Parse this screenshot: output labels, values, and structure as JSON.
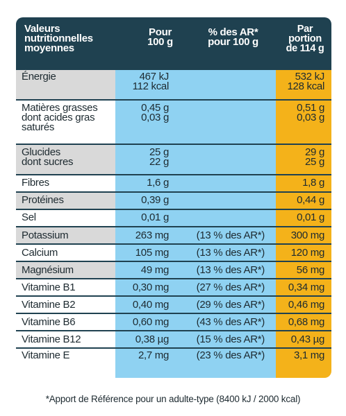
{
  "header": {
    "nutrient": [
      "Valeurs",
      "nutritionnelles",
      "moyennes"
    ],
    "per100": [
      "Pour",
      "100 g"
    ],
    "ar": [
      "% des AR*",
      "pour 100 g"
    ],
    "portion": [
      "Par",
      "portion",
      "de 114 g"
    ]
  },
  "rows": [
    {
      "name": [
        "Énergie"
      ],
      "per100": [
        "467 kJ",
        "112 kcal"
      ],
      "ar": [],
      "portion": [
        "532 kJ",
        "128 kcal"
      ],
      "shaded": true
    },
    {
      "name": [
        "Matières grasses",
        "dont acides gras",
        "saturés"
      ],
      "per100": [
        "0,45 g",
        "0,03 g"
      ],
      "ar": [],
      "portion": [
        "0,51 g",
        "0,03 g"
      ],
      "shaded": false
    },
    {
      "name": [
        "Glucides",
        "dont sucres"
      ],
      "per100": [
        "25 g",
        "22 g"
      ],
      "ar": [],
      "portion": [
        "29 g",
        "25 g"
      ],
      "shaded": true
    },
    {
      "name": [
        "Fibres"
      ],
      "per100": [
        "1,6 g"
      ],
      "ar": [],
      "portion": [
        "1,8 g"
      ],
      "shaded": false
    },
    {
      "name": [
        "Protéines"
      ],
      "per100": [
        "0,39 g"
      ],
      "ar": [],
      "portion": [
        "0,44 g"
      ],
      "shaded": true
    },
    {
      "name": [
        "Sel"
      ],
      "per100": [
        "0,01 g"
      ],
      "ar": [],
      "portion": [
        "0,01 g"
      ],
      "shaded": false
    },
    {
      "name": [
        "Potassium"
      ],
      "per100": [
        "263 mg"
      ],
      "ar": [
        "(13 % des AR*)"
      ],
      "portion": [
        "300 mg"
      ],
      "shaded": true
    },
    {
      "name": [
        "Calcium"
      ],
      "per100": [
        "105 mg"
      ],
      "ar": [
        "(13 % des AR*)"
      ],
      "portion": [
        "120 mg"
      ],
      "shaded": false
    },
    {
      "name": [
        "Magnésium"
      ],
      "per100": [
        "49 mg"
      ],
      "ar": [
        "(13 % des AR*)"
      ],
      "portion": [
        "56 mg"
      ],
      "shaded": true
    },
    {
      "name": [
        "Vitamine B1"
      ],
      "per100": [
        "0,30 mg"
      ],
      "ar": [
        "(27 % des AR*)"
      ],
      "portion": [
        "0,34 mg"
      ],
      "shaded": false
    },
    {
      "name": [
        "Vitamine B2"
      ],
      "per100": [
        "0,40 mg"
      ],
      "ar": [
        "(29 % des AR*)"
      ],
      "portion": [
        "0,46 mg"
      ],
      "shaded": false
    },
    {
      "name": [
        "Vitamine B6"
      ],
      "per100": [
        "0,60 mg"
      ],
      "ar": [
        "(43 % des AR*)"
      ],
      "portion": [
        "0,68 mg"
      ],
      "shaded": false
    },
    {
      "name": [
        "Vitamine B12"
      ],
      "per100": [
        "0,38 µg"
      ],
      "ar": [
        "(15 % des AR*)"
      ],
      "portion": [
        "0,43 µg"
      ],
      "shaded": false
    },
    {
      "name": [
        "Vitamine E"
      ],
      "per100": [
        "2,7 mg"
      ],
      "ar": [
        "(23 % des AR*)"
      ],
      "portion": [
        "3,1 mg"
      ],
      "shaded": false
    }
  ],
  "footnote": "*Apport de Référence pour un adulte-type (8400 kJ / 2000 kcal)",
  "colors": {
    "header": "#1f4150",
    "blue": "#8fd2f2",
    "orange": "#f4b21a",
    "shade": "#d9d9d9"
  }
}
